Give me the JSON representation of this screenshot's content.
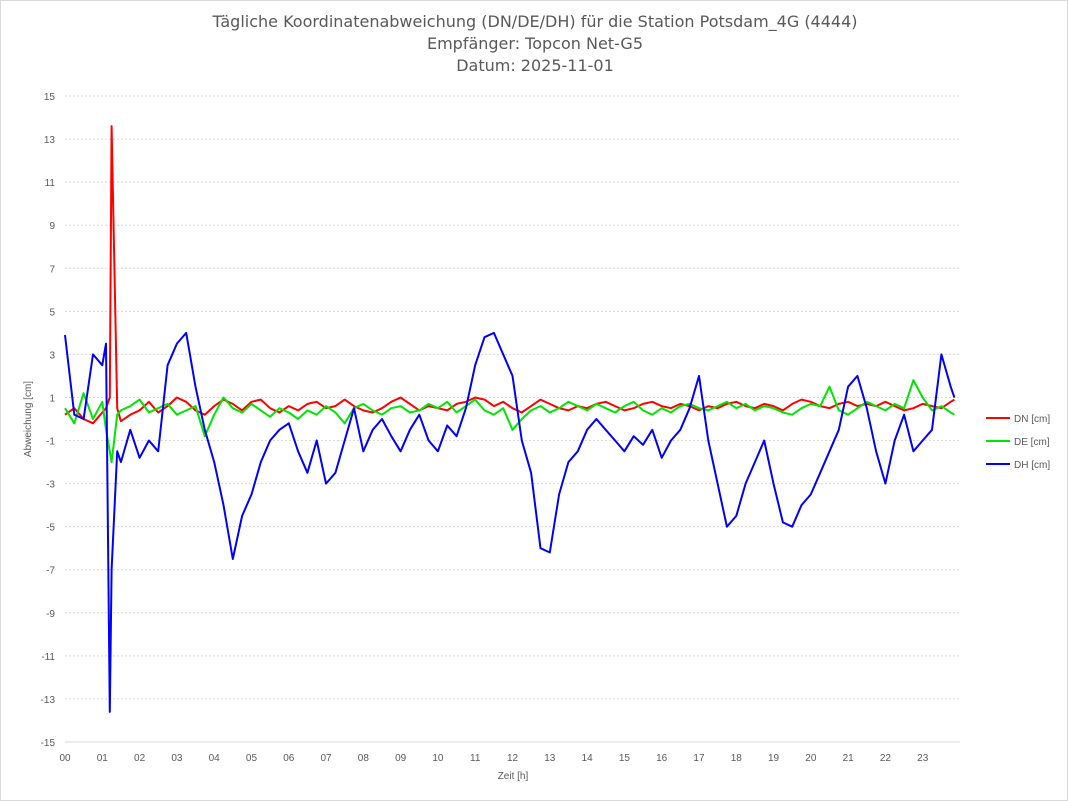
{
  "chart_data": {
    "type": "line",
    "title_lines": [
      "Tägliche Koordinatenabweichung (DN/DE/DH) für die Station Potsdam_4G (4444)",
      "Empfänger: Topcon Net-G5",
      "Datum: 2025-11-01"
    ],
    "xlabel": "Zeit [h]",
    "ylabel": "Abweichung [cm]",
    "xlim": [
      0,
      24
    ],
    "ylim": [
      -15,
      15
    ],
    "x_ticks": [
      0,
      1,
      2,
      3,
      4,
      5,
      6,
      7,
      8,
      9,
      10,
      11,
      12,
      13,
      14,
      15,
      16,
      17,
      18,
      19,
      20,
      21,
      22,
      23
    ],
    "x_tick_labels": [
      "00",
      "01",
      "02",
      "03",
      "04",
      "05",
      "06",
      "07",
      "08",
      "09",
      "10",
      "11",
      "12",
      "13",
      "14",
      "15",
      "16",
      "17",
      "18",
      "19",
      "20",
      "21",
      "22",
      "23"
    ],
    "y_ticks": [
      15,
      13,
      11,
      9,
      7,
      5,
      3,
      1,
      -1,
      -3,
      -5,
      -7,
      -9,
      -11,
      -13,
      -15
    ],
    "y_tick_labels": [
      "15",
      "13",
      "11",
      "9",
      "7",
      "5",
      "3",
      "1",
      "-1",
      "-3",
      "-5",
      "-7",
      "-9",
      "-11",
      "-13",
      "-15"
    ],
    "grid": true,
    "legend_position": "right",
    "x": [
      0.0,
      0.25,
      0.5,
      0.75,
      1.0,
      1.1,
      1.2,
      1.25,
      1.4,
      1.5,
      1.75,
      2.0,
      2.25,
      2.5,
      2.75,
      3.0,
      3.25,
      3.5,
      3.75,
      4.0,
      4.25,
      4.5,
      4.75,
      5.0,
      5.25,
      5.5,
      5.75,
      6.0,
      6.25,
      6.5,
      6.75,
      7.0,
      7.25,
      7.5,
      7.75,
      8.0,
      8.25,
      8.5,
      8.75,
      9.0,
      9.25,
      9.5,
      9.75,
      10.0,
      10.25,
      10.5,
      10.75,
      11.0,
      11.25,
      11.5,
      11.75,
      12.0,
      12.25,
      12.5,
      12.75,
      13.0,
      13.25,
      13.5,
      13.75,
      14.0,
      14.25,
      14.5,
      14.75,
      15.0,
      15.25,
      15.5,
      15.75,
      16.0,
      16.25,
      16.5,
      16.75,
      17.0,
      17.25,
      17.5,
      17.75,
      18.0,
      18.25,
      18.5,
      18.75,
      19.0,
      19.25,
      19.5,
      19.75,
      20.0,
      20.25,
      20.5,
      20.75,
      21.0,
      21.25,
      21.5,
      21.75,
      22.0,
      22.25,
      22.5,
      22.75,
      23.0,
      23.25,
      23.5,
      23.75,
      23.85
    ],
    "series": [
      {
        "name": "DN [cm]",
        "color": "#ff0000",
        "values": [
          0.2,
          0.5,
          0.0,
          -0.2,
          0.3,
          0.5,
          1.0,
          13.6,
          0.5,
          -0.1,
          0.2,
          0.4,
          0.8,
          0.3,
          0.6,
          1.0,
          0.8,
          0.4,
          0.2,
          0.6,
          0.9,
          0.7,
          0.4,
          0.8,
          0.9,
          0.5,
          0.3,
          0.6,
          0.4,
          0.7,
          0.8,
          0.5,
          0.6,
          0.9,
          0.6,
          0.4,
          0.3,
          0.5,
          0.8,
          1.0,
          0.7,
          0.4,
          0.6,
          0.5,
          0.4,
          0.7,
          0.8,
          1.0,
          0.9,
          0.6,
          0.8,
          0.5,
          0.3,
          0.6,
          0.9,
          0.7,
          0.5,
          0.4,
          0.6,
          0.5,
          0.7,
          0.8,
          0.6,
          0.4,
          0.5,
          0.7,
          0.8,
          0.6,
          0.5,
          0.7,
          0.6,
          0.4,
          0.6,
          0.5,
          0.7,
          0.8,
          0.6,
          0.5,
          0.7,
          0.6,
          0.4,
          0.7,
          0.9,
          0.8,
          0.6,
          0.5,
          0.7,
          0.8,
          0.6,
          0.7,
          0.6,
          0.8,
          0.6,
          0.4,
          0.5,
          0.7,
          0.6,
          0.5,
          0.8,
          0.9
        ]
      },
      {
        "name": "DE [cm]",
        "color": "#00e600",
        "values": [
          0.5,
          -0.2,
          1.2,
          0.0,
          0.8,
          -0.5,
          -1.5,
          -2.0,
          0.2,
          0.4,
          0.6,
          0.9,
          0.3,
          0.5,
          0.7,
          0.2,
          0.4,
          0.6,
          -0.8,
          0.2,
          1.0,
          0.5,
          0.3,
          0.7,
          0.4,
          0.1,
          0.5,
          0.3,
          0.0,
          0.4,
          0.2,
          0.6,
          0.3,
          -0.2,
          0.5,
          0.7,
          0.4,
          0.2,
          0.5,
          0.6,
          0.3,
          0.4,
          0.7,
          0.5,
          0.8,
          0.3,
          0.6,
          0.9,
          0.4,
          0.2,
          0.5,
          -0.5,
          0.0,
          0.4,
          0.6,
          0.3,
          0.5,
          0.8,
          0.6,
          0.4,
          0.7,
          0.5,
          0.3,
          0.6,
          0.8,
          0.4,
          0.2,
          0.5,
          0.3,
          0.6,
          0.7,
          0.5,
          0.4,
          0.6,
          0.8,
          0.5,
          0.7,
          0.4,
          0.6,
          0.5,
          0.3,
          0.2,
          0.5,
          0.7,
          0.6,
          1.5,
          0.4,
          0.2,
          0.5,
          0.8,
          0.6,
          0.4,
          0.7,
          0.5,
          1.8,
          1.0,
          0.4,
          0.6,
          0.3,
          0.2
        ]
      },
      {
        "name": "DH [cm]",
        "color": "#0000ff",
        "values": [
          3.9,
          0.2,
          0.0,
          3.0,
          2.5,
          3.5,
          -13.6,
          -7.0,
          -1.5,
          -2.0,
          -0.5,
          -1.8,
          -1.0,
          -1.5,
          2.5,
          3.5,
          4.0,
          1.5,
          -0.5,
          -2.0,
          -4.0,
          -6.5,
          -4.5,
          -3.5,
          -2.0,
          -1.0,
          -0.5,
          -0.2,
          -1.5,
          -2.5,
          -1.0,
          -3.0,
          -2.5,
          -1.0,
          0.5,
          -1.5,
          -0.5,
          0.0,
          -0.8,
          -1.5,
          -0.5,
          0.2,
          -1.0,
          -1.5,
          -0.3,
          -0.8,
          0.5,
          2.5,
          3.8,
          4.0,
          3.0,
          2.0,
          -1.0,
          -2.5,
          -6.0,
          -6.2,
          -3.5,
          -2.0,
          -1.5,
          -0.5,
          0.0,
          -0.5,
          -1.0,
          -1.5,
          -0.8,
          -1.2,
          -0.5,
          -1.8,
          -1.0,
          -0.5,
          0.5,
          2.0,
          -1.0,
          -3.0,
          -5.0,
          -4.5,
          -3.0,
          -2.0,
          -1.0,
          -3.0,
          -4.8,
          -5.0,
          -4.0,
          -3.5,
          -2.5,
          -1.5,
          -0.5,
          1.5,
          2.0,
          0.5,
          -1.5,
          -3.0,
          -1.0,
          0.2,
          -1.5,
          -1.0,
          -0.5,
          3.0,
          1.5,
          1.0
        ]
      }
    ]
  }
}
